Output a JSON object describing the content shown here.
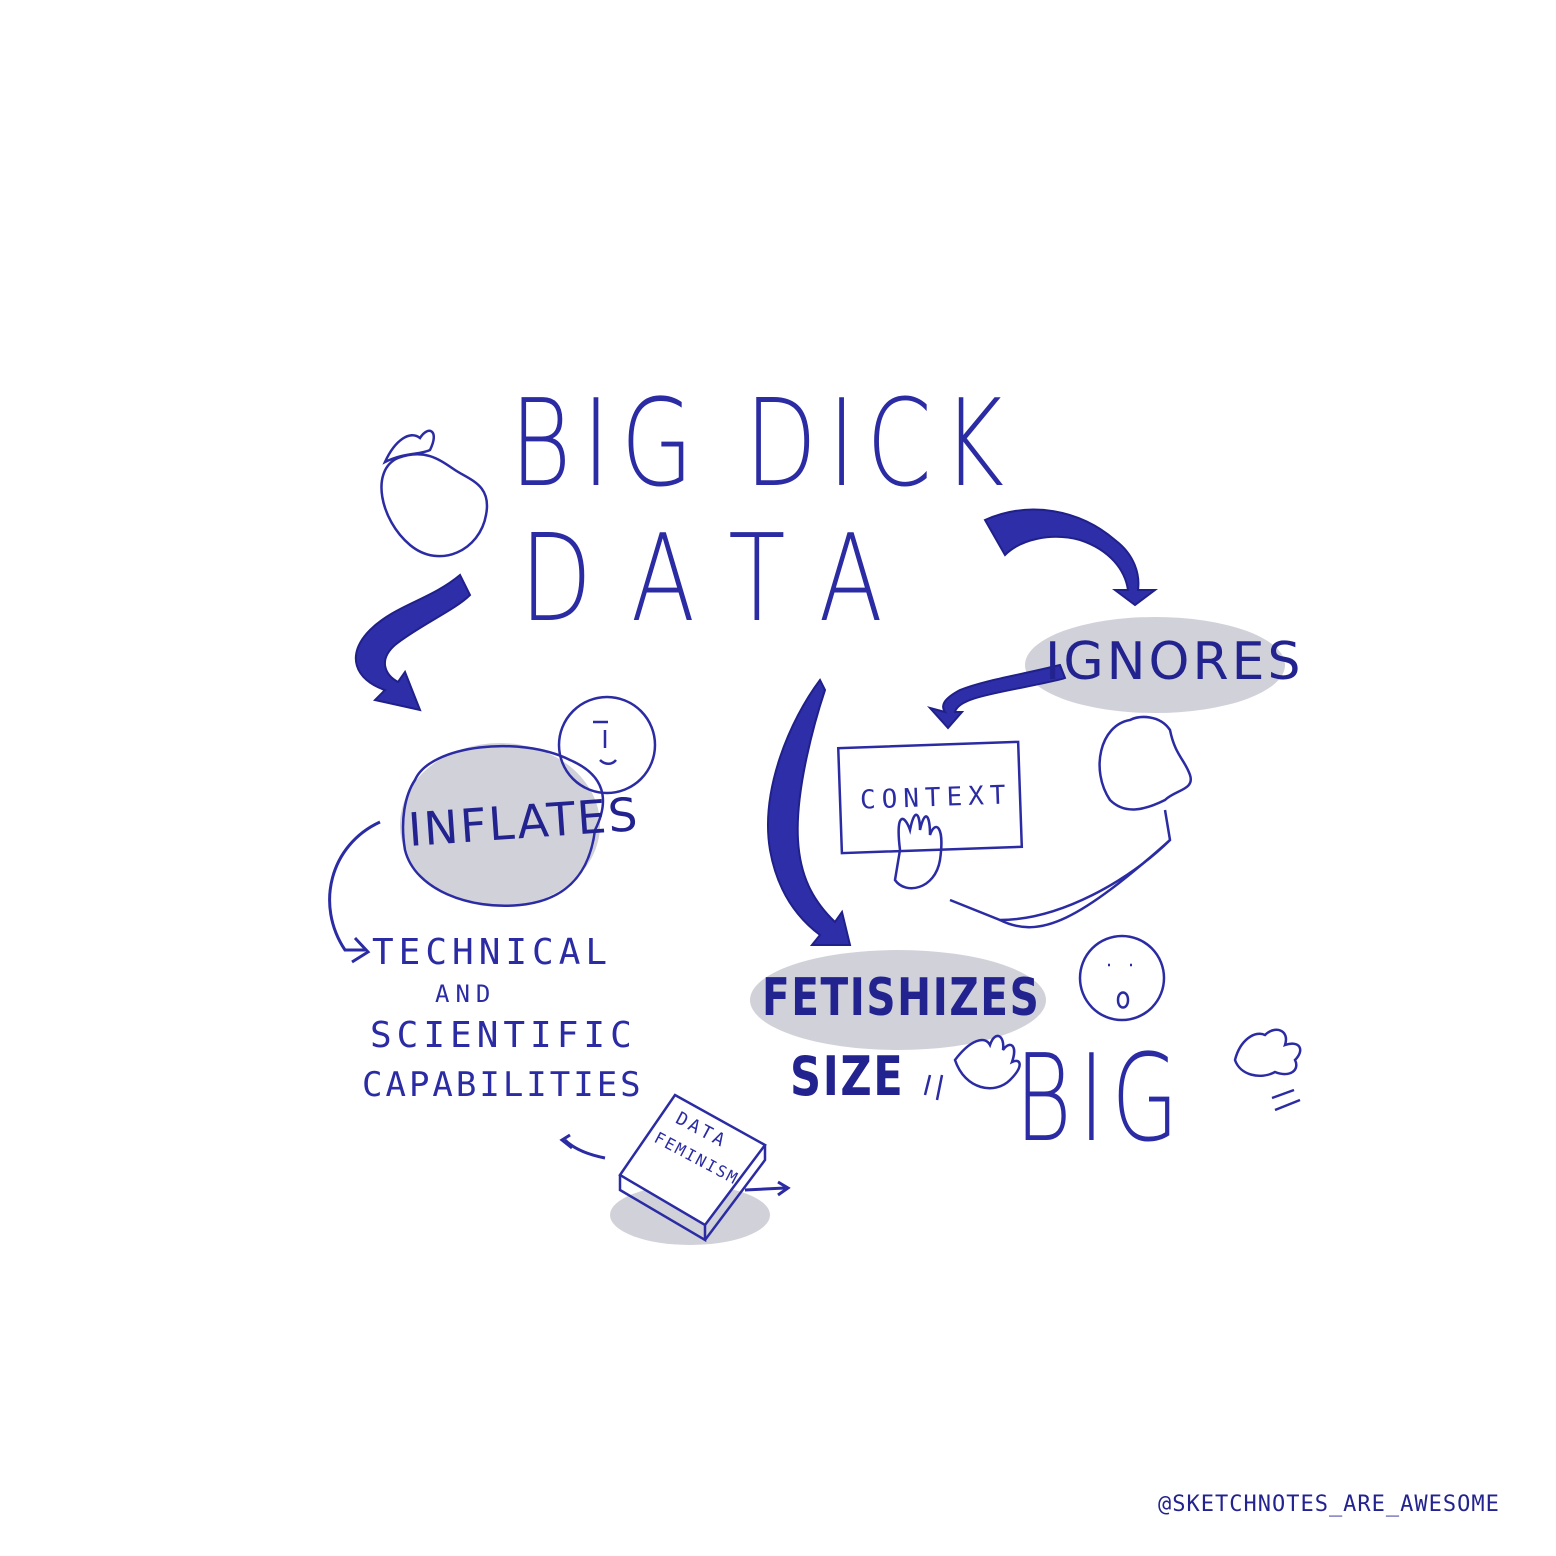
{
  "title": {
    "line1": "BIG DICK",
    "line2": "DATA"
  },
  "nodes": {
    "ignores": "IGNORES",
    "inflates": "INFLATES",
    "fetishizes": "FETISHIZES",
    "size": "SIZE",
    "context": "CONTEXT",
    "big": "BIG"
  },
  "inflates_target": {
    "line1": "TECHNICAL",
    "line2": "AND",
    "line3": "SCIENTIFIC",
    "line4": "CAPABILITIES"
  },
  "book": {
    "line1": "DATA",
    "line2": "FEMINISM"
  },
  "credit": "@SKETCHNOTES_ARE_AWESOME",
  "colors": {
    "ink": "#2b2ba3",
    "shade": "#c7c7d2",
    "paper": "#ffffff"
  },
  "icons": [
    "eggplant-icon",
    "face-icon",
    "hand-icon",
    "book-icon",
    "arrow-icon"
  ]
}
